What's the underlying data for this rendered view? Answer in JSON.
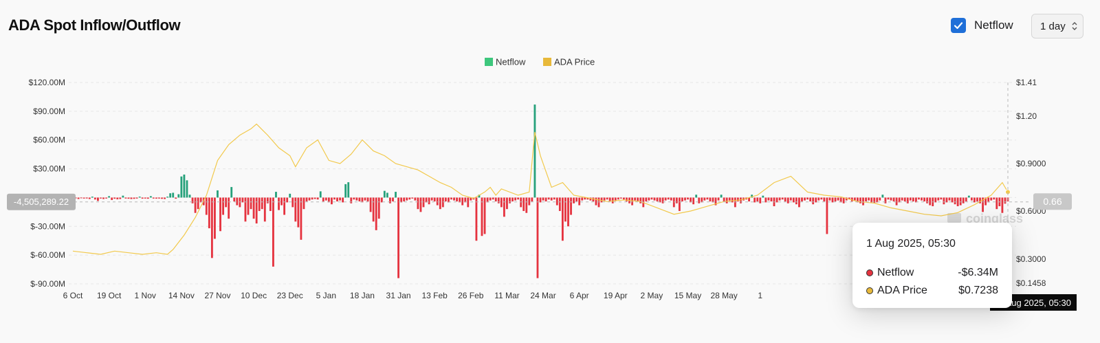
{
  "title": "ADA Spot Inflow/Outflow",
  "controls": {
    "netflow_label": "Netflow",
    "netflow_checked": true,
    "interval": "1 day",
    "checkbox_color": "#1f6fd8"
  },
  "tooltip": {
    "date": "1 Aug 2025, 05:30",
    "rows": [
      {
        "name": "Netflow",
        "value": "-$6.34M",
        "color": "#e5333f"
      },
      {
        "name": "ADA Price",
        "value": "$0.7238",
        "color": "#e8b93a"
      }
    ]
  },
  "crosshair": {
    "left_value": "-4,505,289.22",
    "right_value": "0.66",
    "x_label": "1 Aug 2025, 05:30"
  },
  "watermark": "coinglass",
  "chart_data": {
    "type": "bar",
    "legend": [
      {
        "name": "Netflow",
        "color": "#3ec77d"
      },
      {
        "name": "ADA Price",
        "color": "#e8b93a"
      }
    ],
    "legend_position": "top-center",
    "colors": {
      "positive": "#26a17b",
      "negative": "#e5333f",
      "price": "#f2c94c"
    },
    "y_left": {
      "ticks": [
        120,
        90,
        60,
        30,
        0,
        -30,
        -60,
        -90
      ],
      "tick_labels": [
        "$120.00M",
        "$90.00M",
        "$60.00M",
        "$30.00M",
        "",
        "$-30.00M",
        "$-60.00M",
        "$-90.00M"
      ],
      "range": [
        -90,
        120
      ],
      "unit": "$M"
    },
    "y_right": {
      "tick_labels": [
        "$1.41",
        "$1.20",
        "$0.9000",
        "$0.6000",
        "$0.3000",
        "$0.1458"
      ],
      "tick_values": [
        1.41,
        1.2,
        0.9,
        0.6,
        0.3,
        0.1458
      ]
    },
    "x_axis": {
      "tick_labels": [
        "6 Oct",
        "19 Oct",
        "1 Nov",
        "14 Nov",
        "27 Nov",
        "10 Dec",
        "23 Dec",
        "5 Jan",
        "18 Jan",
        "31 Jan",
        "13 Feb",
        "26 Feb",
        "11 Mar",
        "24 Mar",
        "6 Apr",
        "19 Apr",
        "2 May",
        "15 May",
        "28 May",
        "1"
      ],
      "tick_day_offsets": [
        0,
        13,
        26,
        39,
        52,
        65,
        78,
        91,
        104,
        117,
        130,
        143,
        156,
        169,
        182,
        195,
        208,
        221,
        234,
        247
      ],
      "start_date": "2024-10-06"
    },
    "netflow_segments": [
      {
        "start_day": 0,
        "end_day": 5,
        "values": [
          -1.2,
          -0.8,
          -1.5,
          -0.6,
          -1.0,
          -0.9
        ]
      },
      {
        "start_day": 6,
        "end_day": 34,
        "values": [
          -1.5,
          1.0,
          -2.0,
          -3.5,
          -1.0,
          -1.5,
          -1.0,
          1.5,
          -2.5,
          -1.2,
          -1.8,
          -1.5,
          2.0,
          -1.0,
          -1.2,
          -1.5,
          -1.3,
          -1.0,
          1.0,
          -1.1,
          -1.0,
          -1.2,
          1.5,
          -1.0,
          -1.1,
          -1.0,
          -1.3,
          -1.5,
          1.0
        ]
      },
      {
        "start_day": 35,
        "end_day": 46,
        "values": [
          4.5,
          5.0,
          -1.2,
          3.5,
          22.0,
          24.0,
          18.0,
          3.0,
          -6.0,
          -16.0,
          -12.0,
          -5.0
        ]
      },
      {
        "start_day": 47,
        "end_day": 60,
        "values": [
          -8.0,
          -18.0,
          -32.0,
          -63.0,
          -43.0,
          7.5,
          -35.0,
          -18.0,
          -10.0,
          -22.0,
          11.0,
          -4.0,
          -8.0,
          -10.0
        ]
      },
      {
        "start_day": 61,
        "end_day": 67,
        "values": [
          -5.0,
          -25.0,
          -18.0,
          -12.0,
          -22.0,
          -27.0,
          -14.0
        ]
      },
      {
        "start_day": 68,
        "end_day": 73,
        "values": [
          -12.0,
          -25.0,
          -6.0,
          -14.0,
          -72.0,
          6.0
        ]
      },
      {
        "start_day": 74,
        "end_day": 87,
        "values": [
          -13.0,
          -8.0,
          -18.0,
          -5.0,
          4.0,
          -10.0,
          -25.0,
          -31.0,
          -44.0,
          -12.0,
          -4.0,
          -3.0,
          -2.0,
          -1.5
        ]
      },
      {
        "start_day": 88,
        "end_day": 104,
        "values": [
          -2.0,
          6.5,
          -4.0,
          -3.0,
          -5.0,
          -7.0,
          -2.0,
          -4.0,
          -3.0,
          -5.0,
          14.0,
          16.0,
          -6.0,
          -2.0,
          -3.0,
          -4.0,
          -5.0
        ]
      },
      {
        "start_day": 105,
        "end_day": 122,
        "values": [
          -3.0,
          -4.0,
          -15.0,
          -25.0,
          -34.0,
          -22.0,
          -5.0,
          7.0,
          5.0,
          -6.0,
          -4.0,
          6.0,
          -84.0,
          -5.0,
          -4.0,
          -3.0,
          -2.0,
          -1.0
        ]
      },
      {
        "start_day": 123,
        "end_day": 144,
        "values": [
          -3.0,
          -12.0,
          -15.0,
          -10.0,
          -5.0,
          -7.0,
          -3.0,
          -4.0,
          -8.0,
          -12.0,
          -10.0,
          -4.0,
          -5.0,
          -2.0,
          -3.0,
          -4.0,
          -5.0,
          -8.0,
          -5.0,
          -10.0,
          -3.0,
          -2.0
        ]
      },
      {
        "start_day": 145,
        "end_day": 155,
        "values": [
          -45.0,
          3.0,
          -40.0,
          -38.0,
          -5.0,
          -3.0,
          -2.0,
          -4.0,
          -6.0,
          -10.0,
          -20.0
        ]
      },
      {
        "start_day": 156,
        "end_day": 165,
        "values": [
          -12.0,
          -6.0,
          -4.0,
          -3.0,
          -2.0,
          -10.0,
          -14.0,
          -16.0,
          -8.0,
          -4.0
        ]
      },
      {
        "start_day": 166,
        "end_day": 175,
        "values": [
          97.0,
          -84.0,
          -5.0,
          -3.0,
          -4.0,
          -2.0,
          -3.0,
          -2.0,
          -8.0,
          -14.0
        ]
      },
      {
        "start_day": 176,
        "end_day": 184,
        "values": [
          -45.0,
          -25.0,
          -30.0,
          -18.0,
          -6.0,
          -4.0,
          -8.0,
          -3.0,
          -2.0
        ]
      },
      {
        "start_day": 185,
        "end_day": 200,
        "values": [
          -2.0,
          -3.0,
          -4.0,
          -8.0,
          -10.0,
          -5.0,
          -3.0,
          -2.0,
          -4.0,
          -6.0,
          -3.0,
          -2.0,
          -1.0,
          -2.0,
          -4.0,
          -6.0
        ]
      },
      {
        "start_day": 201,
        "end_day": 215,
        "values": [
          -8.0,
          -3.0,
          -4.0,
          -6.0,
          -10.0,
          -4.0,
          -3.0,
          -2.0,
          -3.0,
          -4.0,
          -5.0,
          -6.0,
          -3.0,
          -2.0,
          -3.0
        ]
      },
      {
        "start_day": 216,
        "end_day": 230,
        "values": [
          -10.0,
          -6.0,
          -14.0,
          -4.0,
          -3.0,
          -2.0,
          -5.0,
          -7.0,
          3.0,
          -6.0,
          -5.0,
          -3.0,
          -2.0,
          -4.0,
          -5.0
        ]
      },
      {
        "start_day": 231,
        "end_day": 245,
        "values": [
          -8.0,
          -3.0,
          3.0,
          -4.0,
          -6.0,
          -3.0,
          -5.0,
          -10.0,
          -4.0,
          -6.0,
          -3.0,
          -2.0,
          -4.0,
          3.0,
          -5.0
        ]
      },
      {
        "start_day": 246,
        "end_day": 260,
        "values": [
          -4.0,
          -6.0,
          2.0,
          -5.0,
          -3.0,
          -4.0,
          -9.0,
          -5.0,
          -3.0,
          -2.0,
          -4.0,
          -6.0,
          -3.0,
          -5.0,
          -7.0
        ]
      },
      {
        "start_day": 261,
        "end_day": 275,
        "values": [
          -10.0,
          -4.0,
          -3.0,
          -2.0,
          -4.0,
          -7.0,
          -5.0,
          -3.0,
          -2.0,
          -4.0,
          -38.0,
          -3.0,
          -5.0,
          -4.0,
          -3.0
        ]
      },
      {
        "start_day": 276,
        "end_day": 290,
        "values": [
          -5.0,
          -6.0,
          -3.0,
          -2.0,
          -4.0,
          -3.0,
          -5.0,
          -6.0,
          -8.0,
          -4.0,
          -3.0,
          -5.0,
          -6.0,
          -5.0,
          -3.0
        ]
      },
      {
        "start_day": 291,
        "end_day": 300,
        "values": [
          3.0,
          -6.0,
          -2.0,
          -3.0,
          -4.0,
          -8.0,
          -5.0,
          -3.0,
          -4.0,
          -6.0
        ]
      },
      {
        "start_day": 301,
        "end_day": 315,
        "values": [
          -3.0,
          -4.0,
          -5.0,
          -2.0,
          -3.0,
          -4.0,
          -6.0,
          -8.0,
          -9.0,
          -5.0,
          -3.0,
          -2.0,
          -7.0,
          -5.0,
          -3.0
        ]
      },
      {
        "start_day": 316,
        "end_day": 336,
        "values": [
          -5.0,
          -7.0,
          -9.0,
          -8.0,
          -6.0,
          -4.0,
          2.0,
          -3.0,
          -5.0,
          -4.0,
          -6.0,
          -15.0,
          -8.0,
          -5.0,
          -3.0,
          -2.0,
          -12.0,
          -9.0,
          -16.0,
          -6.34,
          -4.0
        ]
      }
    ],
    "price_series": {
      "name": "ADA Price",
      "day_offsets": [
        0,
        5,
        10,
        15,
        20,
        25,
        30,
        34,
        36,
        40,
        44,
        48,
        52,
        56,
        60,
        64,
        66,
        70,
        74,
        78,
        80,
        84,
        88,
        92,
        96,
        100,
        104,
        108,
        112,
        116,
        120,
        124,
        128,
        132,
        136,
        140,
        144,
        148,
        150,
        152,
        154,
        160,
        164,
        166,
        168,
        172,
        176,
        180,
        186,
        192,
        198,
        204,
        210,
        216,
        222,
        228,
        234,
        240,
        246,
        252,
        258,
        264,
        270,
        276,
        282,
        288,
        294,
        300,
        306,
        312,
        318,
        324,
        330,
        334,
        336
      ],
      "values": [
        0.35,
        0.34,
        0.33,
        0.35,
        0.34,
        0.33,
        0.34,
        0.33,
        0.36,
        0.45,
        0.56,
        0.7,
        0.92,
        1.02,
        1.08,
        1.12,
        1.15,
        1.08,
        1.0,
        0.95,
        0.88,
        1.0,
        1.05,
        0.92,
        0.9,
        0.96,
        1.05,
        0.98,
        0.95,
        0.9,
        0.88,
        0.86,
        0.82,
        0.78,
        0.75,
        0.7,
        0.68,
        0.72,
        0.75,
        0.7,
        0.74,
        0.7,
        0.72,
        1.1,
        0.95,
        0.75,
        0.78,
        0.7,
        0.68,
        0.66,
        0.67,
        0.66,
        0.62,
        0.58,
        0.6,
        0.63,
        0.66,
        0.67,
        0.7,
        0.78,
        0.82,
        0.72,
        0.7,
        0.69,
        0.66,
        0.65,
        0.62,
        0.6,
        0.58,
        0.57,
        0.59,
        0.64,
        0.7,
        0.78,
        0.72
      ]
    }
  }
}
